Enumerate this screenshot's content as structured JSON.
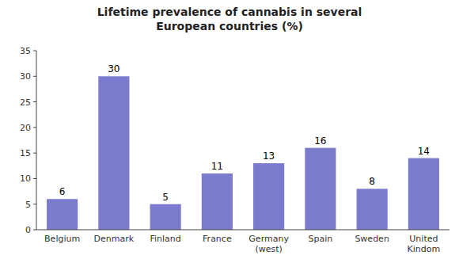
{
  "chart_data": {
    "type": "bar",
    "title": "Lifetime prevalence of cannabis in several\nEuropean countries (%)",
    "categories": [
      "Belgium",
      "Denmark",
      "Finland",
      "France",
      "Germany\n(west)",
      "Spain",
      "Sweden",
      "United\nKindom"
    ],
    "values": [
      6,
      30,
      5,
      11,
      13,
      16,
      8,
      14
    ],
    "color": "#7B7BCE",
    "ylim": [
      0,
      35
    ],
    "yticks": [
      0,
      5,
      10,
      15,
      20,
      25,
      30,
      35
    ],
    "grid": false,
    "data_labels": true
  }
}
